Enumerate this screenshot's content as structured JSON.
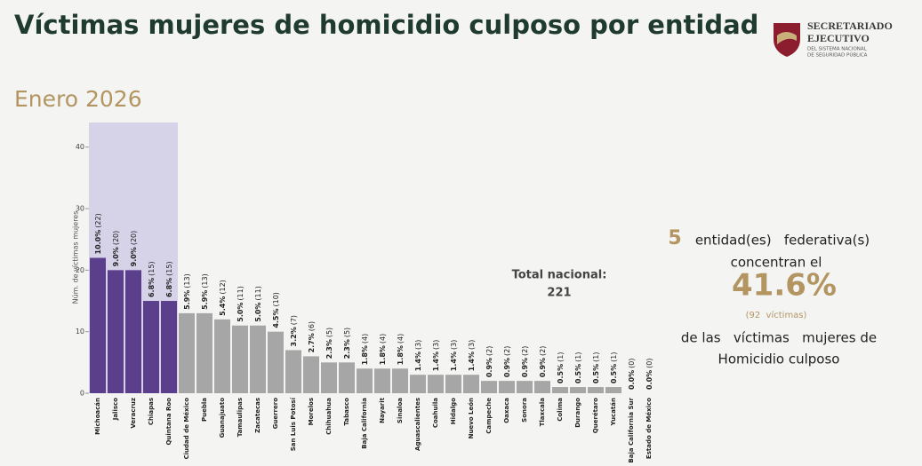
{
  "chart_data": {
    "type": "bar",
    "title": "Víctimas mujeres de homicidio culposo por entidad",
    "subtitle": "Enero 2026",
    "y_label": "Núm. de víctimas mujeres",
    "categories": [
      "Michoacán",
      "Jalisco",
      "Veracruz",
      "Chiapas",
      "Quintana Roo",
      "Ciudad de México",
      "Puebla",
      "Guanajuato",
      "Tamaulipas",
      "Zacatecas",
      "Guerrero",
      "San Luis Potosí",
      "Morelos",
      "Chihuahua",
      "Tabasco",
      "Baja California",
      "Nayarit",
      "Sinaloa",
      "Aguascalientes",
      "Coahuila",
      "Hidalgo",
      "Nuevo León",
      "Campeche",
      "Oaxaca",
      "Sonora",
      "Tlaxcala",
      "Colima",
      "Durango",
      "Querétaro",
      "Yucatán",
      "Baja California Sur",
      "Estado de México"
    ],
    "values": [
      22,
      20,
      20,
      15,
      15,
      13,
      13,
      12,
      11,
      11,
      10,
      7,
      6,
      5,
      5,
      4,
      4,
      4,
      3,
      3,
      3,
      3,
      2,
      2,
      2,
      2,
      1,
      1,
      1,
      1,
      0,
      0
    ],
    "value_labels": [
      "(22)",
      "(20)",
      "(20)",
      "(15)",
      "(15)",
      "(13)",
      "(13)",
      "(12)",
      "(11)",
      "(11)",
      "(10)",
      "(7)",
      "(6)",
      "(5)",
      "(5)",
      "(4)",
      "(4)",
      "(4)",
      "(3)",
      "(3)",
      "(3)",
      "(3)",
      "(2)",
      "(2)",
      "(2)",
      "(2)",
      "(1)",
      "(1)",
      "(1)",
      "(1)",
      "(0)",
      "(0)"
    ],
    "share_labels": [
      "10.0%",
      "9.0%",
      "9.0%",
      "6.8%",
      "6.8%",
      "5.9%",
      "5.9%",
      "5.4%",
      "5.0%",
      "5.0%",
      "4.5%",
      "3.2%",
      "2.7%",
      "2.3%",
      "2.3%",
      "1.8%",
      "1.8%",
      "1.8%",
      "1.4%",
      "1.4%",
      "1.4%",
      "1.4%",
      "0.9%",
      "0.9%",
      "0.9%",
      "0.9%",
      "0.5%",
      "0.5%",
      "0.5%",
      "0.5%",
      "0.0%",
      "0.0%"
    ],
    "colors": [
      "#5b3f8c",
      "#5b3f8c",
      "#5b3f8c",
      "#5b3f8c",
      "#5b3f8c",
      "#a6a6a6",
      "#a6a6a6",
      "#a6a6a6",
      "#a6a6a6",
      "#a6a6a6",
      "#a6a6a6",
      "#a6a6a6",
      "#a6a6a6",
      "#a6a6a6",
      "#a6a6a6",
      "#a6a6a6",
      "#a6a6a6",
      "#a6a6a6",
      "#a6a6a6",
      "#a6a6a6",
      "#a6a6a6",
      "#a6a6a6",
      "#a6a6a6",
      "#a6a6a6",
      "#a6a6a6",
      "#a6a6a6",
      "#a6a6a6",
      "#a6a6a6",
      "#a6a6a6",
      "#a6a6a6",
      "#a6a6a6",
      "#a6a6a6"
    ],
    "ylim": [
      0,
      44
    ],
    "yticks": [
      0,
      10,
      20,
      30,
      40
    ],
    "grid": false
  },
  "total": {
    "label": "Total nacional:",
    "value": "221"
  },
  "summary": {
    "count": "5",
    "line1": "entidad(es)   federativa(s)",
    "line2": "concentran el",
    "share": "41.6%",
    "victims": "(92  víctimas)",
    "line3": "de las   víctimas   mujeres de",
    "line4": "Homicidio culposo"
  },
  "logo": {
    "line1": "SECRETARIADO",
    "line2": "EJECUTIVO",
    "line3": "DEL SISTEMA NACIONAL",
    "line4": "DE SEGURIDAD PÚBLICA"
  }
}
